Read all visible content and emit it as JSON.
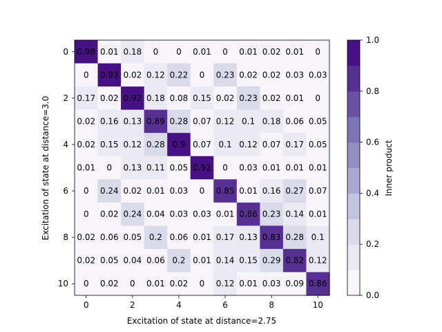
{
  "chart_data": {
    "type": "heatmap",
    "xlabel": "Excitation of state at distance=2.75",
    "ylabel": "Excitation of state at distance=3.0",
    "colorbar_label": "Inner product",
    "x_ticks": [
      0,
      2,
      4,
      6,
      8,
      10
    ],
    "y_ticks": [
      0,
      2,
      4,
      6,
      8,
      10
    ],
    "colorbar_ticks": [
      "0.0",
      "0.2",
      "0.4",
      "0.6",
      "0.8",
      "1.0"
    ],
    "vmin": 0.0,
    "vmax": 1.0,
    "colormap": "Purples",
    "colormap_levels": 10,
    "matrix": [
      [
        0.98,
        0.01,
        0.18,
        0.0,
        0.0,
        0.01,
        0.0,
        0.01,
        0.02,
        0.01,
        0.0
      ],
      [
        0.0,
        0.93,
        0.02,
        0.12,
        0.22,
        0.0,
        0.23,
        0.02,
        0.02,
        0.03,
        0.03
      ],
      [
        0.17,
        0.02,
        0.92,
        0.18,
        0.08,
        0.15,
        0.02,
        0.23,
        0.02,
        0.01,
        0.0
      ],
      [
        0.02,
        0.16,
        0.13,
        0.89,
        0.28,
        0.07,
        0.12,
        0.1,
        0.18,
        0.06,
        0.05
      ],
      [
        0.02,
        0.15,
        0.12,
        0.28,
        0.9,
        0.07,
        0.1,
        0.12,
        0.07,
        0.17,
        0.05
      ],
      [
        0.01,
        0.0,
        0.13,
        0.11,
        0.05,
        0.92,
        0.0,
        0.03,
        0.01,
        0.01,
        0.01
      ],
      [
        0.0,
        0.24,
        0.02,
        0.01,
        0.03,
        0.0,
        0.85,
        0.01,
        0.16,
        0.27,
        0.07
      ],
      [
        0.0,
        0.02,
        0.24,
        0.04,
        0.03,
        0.03,
        0.01,
        0.86,
        0.23,
        0.14,
        0.01
      ],
      [
        0.02,
        0.06,
        0.05,
        0.2,
        0.06,
        0.01,
        0.17,
        0.13,
        0.83,
        0.28,
        0.1
      ],
      [
        0.02,
        0.05,
        0.04,
        0.06,
        0.2,
        0.01,
        0.14,
        0.15,
        0.29,
        0.82,
        0.12
      ],
      [
        0.0,
        0.02,
        0.0,
        0.01,
        0.02,
        0.0,
        0.12,
        0.01,
        0.03,
        0.09,
        0.86
      ]
    ]
  }
}
